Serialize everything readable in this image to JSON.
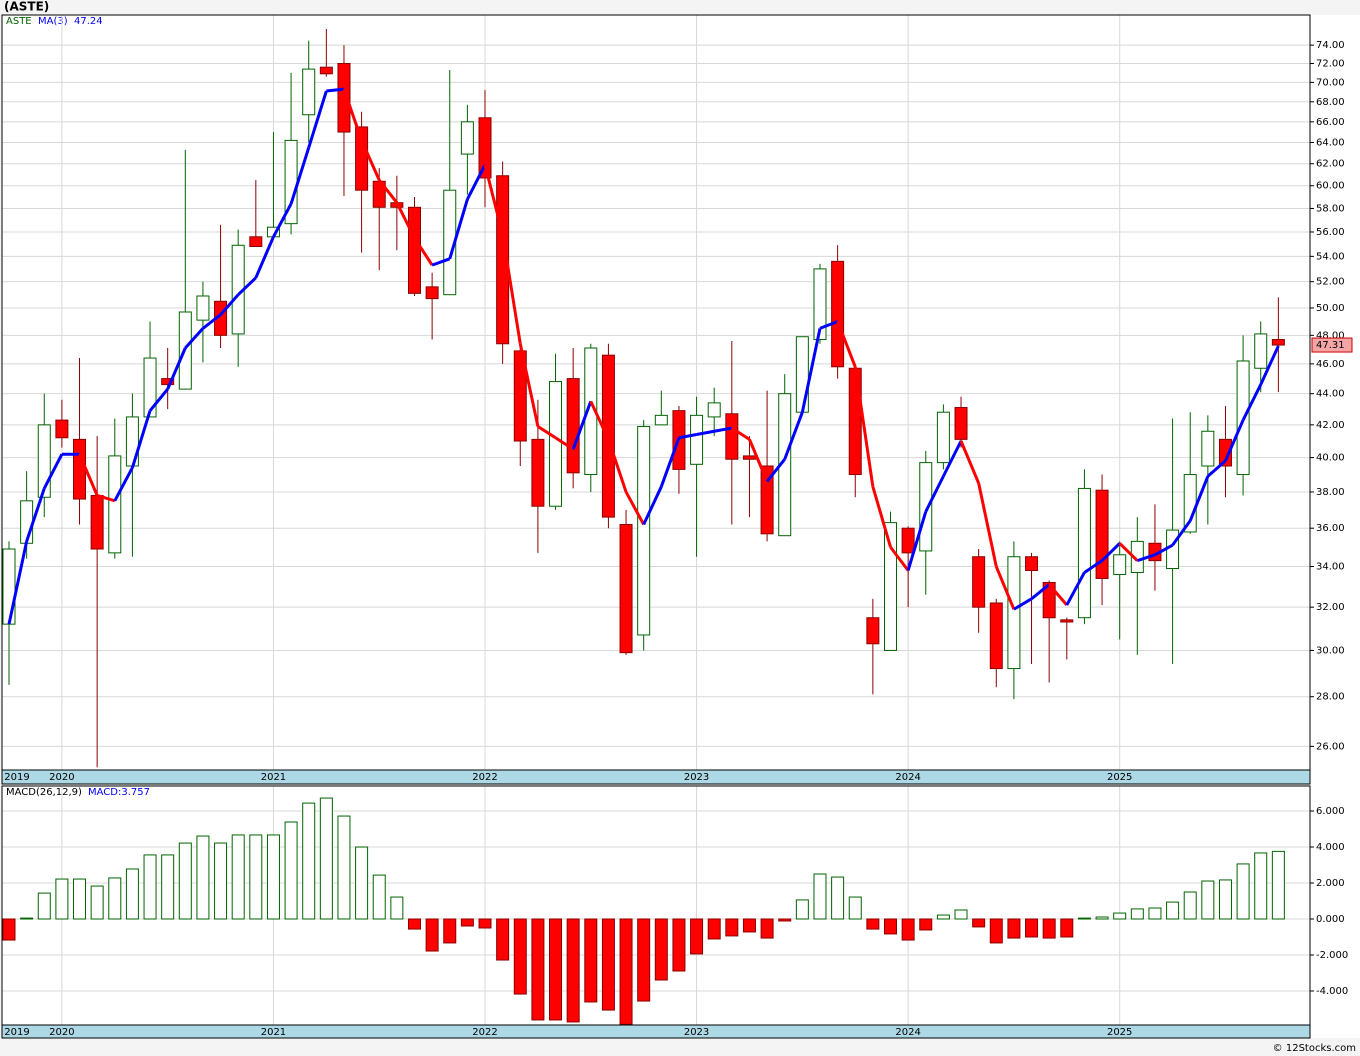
{
  "chart_data": [
    {
      "type": "candlestick",
      "title": "(ASTE)",
      "symbol": "ASTE",
      "categories": [
        "2019",
        null,
        null,
        "2020",
        null,
        null,
        null,
        null,
        null,
        null,
        null,
        null,
        null,
        null,
        null,
        "2021",
        null,
        null,
        null,
        null,
        null,
        null,
        null,
        null,
        null,
        null,
        null,
        "2022",
        null,
        null,
        null,
        null,
        null,
        null,
        null,
        null,
        null,
        null,
        null,
        "2023",
        null,
        null,
        null,
        null,
        null,
        null,
        null,
        null,
        null,
        null,
        null,
        "2024",
        null,
        null,
        null,
        null,
        null,
        null,
        null,
        null,
        null,
        null,
        null,
        "2025",
        null,
        null,
        null,
        null,
        null,
        null,
        null,
        null,
        null
      ],
      "open": [
        31.2,
        35.2,
        37.7,
        42.3,
        41.1,
        37.8,
        34.7,
        39.5,
        42.5,
        45.0,
        44.3,
        49.1,
        50.5,
        48.1,
        55.6,
        55.6,
        56.7,
        66.7,
        71.6,
        72.0,
        65.5,
        60.4,
        58.5,
        58.1,
        51.6,
        51.0,
        62.9,
        66.4,
        60.9,
        46.9,
        41.1,
        37.2,
        45.0,
        39.0,
        46.6,
        36.2,
        30.7,
        42.0,
        42.9,
        39.6,
        42.5,
        42.7,
        40.1,
        39.5,
        35.6,
        42.8,
        47.7,
        53.6,
        45.7,
        31.5,
        30.0,
        36.0,
        34.8,
        39.7,
        43.1,
        34.5,
        32.2,
        29.2,
        34.5,
        33.2,
        31.4,
        31.5,
        38.1,
        33.6,
        33.7,
        35.2,
        33.9,
        35.8,
        39.5,
        41.1,
        39.0,
        45.7,
        47.7
      ],
      "high": [
        35.3,
        39.2,
        44.0,
        43.6,
        46.4,
        41.3,
        42.4,
        44.0,
        49.0,
        47.1,
        63.3,
        52.0,
        56.6,
        56.2,
        60.5,
        65.0,
        71.0,
        74.5,
        75.8,
        74.0,
        67.0,
        61.6,
        60.9,
        59.0,
        52.7,
        71.3,
        67.7,
        69.2,
        62.2,
        47.2,
        43.6,
        46.7,
        47.1,
        47.4,
        47.4,
        37.0,
        42.3,
        44.2,
        43.2,
        43.8,
        44.4,
        47.6,
        41.3,
        44.2,
        45.3,
        47.9,
        53.4,
        54.9,
        46.0,
        32.4,
        36.9,
        36.1,
        40.4,
        43.3,
        43.8,
        34.9,
        32.4,
        35.3,
        34.7,
        33.3,
        31.5,
        39.3,
        39.0,
        35.3,
        36.6,
        37.3,
        42.4,
        42.8,
        42.6,
        43.2,
        48.0,
        49.0,
        50.8
      ],
      "low": [
        28.5,
        34.4,
        36.6,
        40.6,
        36.2,
        25.2,
        34.4,
        34.5,
        42.5,
        43.0,
        44.3,
        46.1,
        47.1,
        45.8,
        54.8,
        55.6,
        55.8,
        64.0,
        70.6,
        59.1,
        54.3,
        52.9,
        54.5,
        50.9,
        47.7,
        51.0,
        59.2,
        58.1,
        46.0,
        39.5,
        34.7,
        37.0,
        38.2,
        38.0,
        36.0,
        29.8,
        30.0,
        42.0,
        37.9,
        34.5,
        41.3,
        36.2,
        36.6,
        35.3,
        35.6,
        42.8,
        47.4,
        45.0,
        37.7,
        28.1,
        30.0,
        32.0,
        32.6,
        39.3,
        40.6,
        30.8,
        28.4,
        27.9,
        29.4,
        28.6,
        29.6,
        31.2,
        32.1,
        30.5,
        29.8,
        32.8,
        29.4,
        35.7,
        36.2,
        37.7,
        37.8,
        44.1,
        44.1
      ],
      "close": [
        34.9,
        37.5,
        42.0,
        41.2,
        37.6,
        34.9,
        40.1,
        42.5,
        46.4,
        44.6,
        49.7,
        50.9,
        48.0,
        54.9,
        54.8,
        56.4,
        64.2,
        71.4,
        70.9,
        65.0,
        59.6,
        58.1,
        58.1,
        51.1,
        50.7,
        59.6,
        66.0,
        60.7,
        47.4,
        41.0,
        37.2,
        44.8,
        39.1,
        47.1,
        36.6,
        29.9,
        41.9,
        42.6,
        39.3,
        42.6,
        43.4,
        39.9,
        39.9,
        35.7,
        44.0,
        47.9,
        53.0,
        45.8,
        39.0,
        30.3,
        36.3,
        34.7,
        39.7,
        42.8,
        41.1,
        32.0,
        29.2,
        34.5,
        33.8,
        31.5,
        31.3,
        38.2,
        33.4,
        34.6,
        35.3,
        34.3,
        35.9,
        39.0,
        41.6,
        39.5,
        46.2,
        48.1,
        47.31
      ],
      "up_color": "#006400",
      "down_color": "#ff0000",
      "ma": {
        "name": "MA(3)",
        "up_color": "#0000ff",
        "down_color": "#ff0000",
        "values": [
          31.2,
          35.3,
          38.2,
          40.2,
          40.2,
          37.8,
          37.5,
          39.4,
          42.9,
          44.3,
          47.1,
          48.5,
          49.5,
          51.0,
          52.3,
          55.6,
          58.4,
          63.5,
          69.1,
          69.3,
          64.2,
          60.5,
          58.5,
          55.5,
          53.3,
          53.8,
          58.8,
          61.9,
          55.8,
          47.4,
          41.9,
          41.2,
          40.5,
          43.5,
          41.1,
          38.0,
          36.2,
          38.3,
          41.2,
          41.4,
          41.6,
          41.8,
          41.1,
          38.6,
          39.9,
          42.8,
          48.5,
          49.0,
          45.8,
          38.3,
          35.0,
          33.8,
          36.9,
          38.9,
          41.0,
          38.5,
          34.0,
          31.9,
          32.4,
          33.1,
          32.1,
          33.7,
          34.3,
          35.2,
          34.3,
          34.6,
          35.1,
          36.4,
          38.9,
          39.8,
          42.3,
          44.6,
          47.24
        ]
      },
      "log_scale": true,
      "ylim": [
        25.1,
        77.4
      ],
      "yticks": [
        {
          "value": 26,
          "label": "26.00"
        },
        {
          "value": 28,
          "label": "28.00"
        },
        {
          "value": 30,
          "label": "30.00"
        },
        {
          "value": 32,
          "label": "32.00"
        },
        {
          "value": 34,
          "label": "34.00"
        },
        {
          "value": 36,
          "label": "36.00"
        },
        {
          "value": 38,
          "label": "38.00"
        },
        {
          "value": 40,
          "label": "40.00"
        },
        {
          "value": 42,
          "label": "42.00"
        },
        {
          "value": 44,
          "label": "44.00"
        },
        {
          "value": 46,
          "label": "46.00"
        },
        {
          "value": 48,
          "label": "48.00"
        },
        {
          "value": 50,
          "label": "50.00"
        },
        {
          "value": 52,
          "label": "52.00"
        },
        {
          "value": 54,
          "label": "54.00"
        },
        {
          "value": 56,
          "label": "56.00"
        },
        {
          "value": 58,
          "label": "58.00"
        },
        {
          "value": 60,
          "label": "60.00"
        },
        {
          "value": 62,
          "label": "62.00"
        },
        {
          "value": 64,
          "label": "64.00"
        },
        {
          "value": 66,
          "label": "66.00"
        },
        {
          "value": 68,
          "label": "68.00"
        },
        {
          "value": 70,
          "label": "70.00"
        },
        {
          "value": 72,
          "label": "72.00"
        },
        {
          "value": 74,
          "label": "74.00"
        }
      ],
      "grid": true
    },
    {
      "type": "bar",
      "title": "MACD(26,12,9)",
      "legend_label": "MACD:3.757",
      "values": [
        -1.17,
        0.05,
        1.44,
        2.22,
        2.22,
        1.83,
        2.28,
        2.78,
        3.56,
        3.56,
        4.22,
        4.61,
        4.22,
        4.67,
        4.67,
        4.67,
        5.39,
        6.44,
        6.72,
        5.72,
        4.0,
        2.44,
        1.22,
        -0.56,
        -1.78,
        -1.33,
        -0.39,
        -0.5,
        -2.28,
        -4.17,
        -5.61,
        -5.61,
        -5.72,
        -4.61,
        -5.06,
        -5.85,
        -4.56,
        -3.39,
        -2.89,
        -1.94,
        -1.11,
        -0.94,
        -0.72,
        -1.06,
        -0.11,
        1.06,
        2.5,
        2.33,
        1.22,
        -0.56,
        -0.83,
        -1.17,
        -0.61,
        0.22,
        0.5,
        -0.44,
        -1.33,
        -1.06,
        -1.0,
        -1.06,
        -1.0,
        0.05,
        0.11,
        0.33,
        0.56,
        0.61,
        0.94,
        1.5,
        2.11,
        2.17,
        3.06,
        3.67,
        3.757
      ],
      "up_color": "#006400",
      "down_color": "#ff0000",
      "ylim": [
        -5.89,
        7.39
      ],
      "yticks": [
        {
          "value": -4,
          "label": "-4.000"
        },
        {
          "value": -2,
          "label": "-2.000"
        },
        {
          "value": 0,
          "label": "0.000"
        },
        {
          "value": 2,
          "label": "2.000"
        },
        {
          "value": 4,
          "label": "4.000"
        },
        {
          "value": 6,
          "label": "6.000"
        }
      ],
      "grid": true
    }
  ],
  "footer": "© 12Stocks.com"
}
